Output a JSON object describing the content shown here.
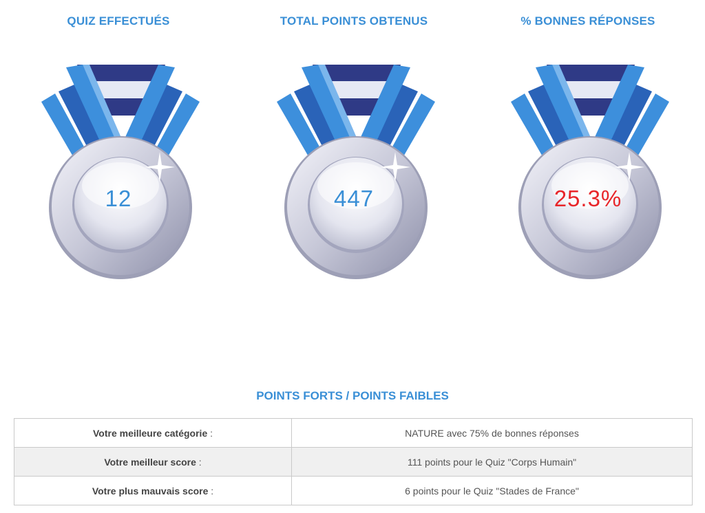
{
  "stats": [
    {
      "title": "QUIZ EFFECTUÉS",
      "value": "12"
    },
    {
      "title": "TOTAL POINTS OBTENUS",
      "value": "447"
    },
    {
      "title": "% BONNES RÉPONSES",
      "value": "25.3%"
    }
  ],
  "colors": {
    "accent": "#3a8fd6",
    "value_blue": "#3a8fd6",
    "value_red": "#e8262a",
    "ribbon_dark": "#2f3a86",
    "ribbon_light": "#e6e9f4",
    "ribbon_blue": "#3d8fdc"
  },
  "summary": {
    "title": "POINTS FORTS / POINTS FAIBLES",
    "rows": [
      {
        "label": "Votre meilleure catégorie",
        "colon": " :",
        "value": "NATURE avec 75% de bonnes réponses"
      },
      {
        "label": "Votre meilleur score",
        "colon": " :",
        "value": "111 points pour le Quiz \"Corps Humain\""
      },
      {
        "label": "Votre plus mauvais score",
        "colon": " :",
        "value": "6 points pour le Quiz \"Stades de France\""
      }
    ]
  }
}
